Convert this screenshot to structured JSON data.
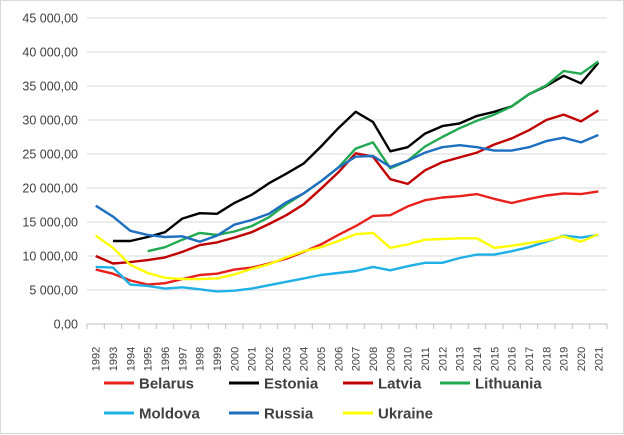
{
  "chart_data": {
    "type": "line",
    "title": "",
    "xlabel": "",
    "ylabel": "",
    "ylim": [
      0,
      45000
    ],
    "y_ticks": [
      0,
      5000,
      10000,
      15000,
      20000,
      25000,
      30000,
      35000,
      40000,
      45000
    ],
    "y_tick_labels": [
      "0,00",
      "5 000,00",
      "10 000,00",
      "15 000,00",
      "20 000,00",
      "25 000,00",
      "30 000,00",
      "35 000,00",
      "40 000,00",
      "45 000,00"
    ],
    "grid": "horizontal",
    "legend_position": "bottom",
    "x": [
      "1992",
      "1993",
      "1994",
      "1995",
      "1996",
      "1997",
      "1998",
      "1999",
      "2000",
      "2001",
      "2002",
      "2003",
      "2004",
      "2005",
      "2006",
      "2007",
      "2008",
      "2009",
      "2010",
      "2011",
      "2012",
      "2013",
      "2014",
      "2015",
      "2016",
      "2017",
      "2018",
      "2019",
      "2020",
      "2021"
    ],
    "series": [
      {
        "name": "Belarus",
        "color": "#e8201c",
        "values": [
          8000,
          7400,
          6400,
          5800,
          6000,
          6600,
          7200,
          7400,
          8000,
          8300,
          8900,
          9600,
          10600,
          11700,
          13100,
          14400,
          15900,
          16000,
          17300,
          18200,
          18600,
          18800,
          19100,
          18400,
          17800,
          18400,
          18900,
          19200,
          19100,
          19500
        ]
      },
      {
        "name": "Estonia",
        "color": "#000000",
        "values": [
          null,
          12200,
          12200,
          12800,
          13500,
          15500,
          16300,
          16200,
          17800,
          19000,
          20700,
          22100,
          23600,
          26100,
          28800,
          31200,
          29700,
          25400,
          26000,
          28000,
          29100,
          29500,
          30600,
          31200,
          32000,
          33800,
          35000,
          36500,
          35400,
          38400
        ]
      },
      {
        "name": "Latvia",
        "color": "#c00000",
        "values": [
          10000,
          8900,
          9100,
          9400,
          9800,
          10600,
          11600,
          12000,
          12700,
          13500,
          14700,
          16000,
          17600,
          19900,
          22300,
          25100,
          24600,
          21300,
          20600,
          22600,
          23800,
          24500,
          25200,
          26400,
          27300,
          28500,
          30000,
          30800,
          29800,
          31400
        ]
      },
      {
        "name": "Lithuania",
        "color": "#21a94f",
        "values": [
          null,
          null,
          null,
          10700,
          11300,
          12400,
          13400,
          13100,
          13600,
          14400,
          15700,
          17600,
          19200,
          21000,
          23000,
          25800,
          26700,
          22900,
          24000,
          26100,
          27500,
          28800,
          29900,
          30800,
          32000,
          33800,
          35100,
          37200,
          36800,
          38600
        ]
      },
      {
        "name": "Moldova",
        "color": "#1fb0e6",
        "values": [
          8400,
          8300,
          5800,
          5600,
          5200,
          5400,
          5100,
          4800,
          4900,
          5200,
          5700,
          6200,
          6700,
          7200,
          7500,
          7800,
          8400,
          7900,
          8500,
          9000,
          9000,
          9700,
          10200,
          10200,
          10700,
          11300,
          12100,
          13000,
          12700,
          13100
        ]
      },
      {
        "name": "Russia",
        "color": "#1f6fc0",
        "values": [
          17400,
          15800,
          13700,
          13100,
          12800,
          12900,
          12100,
          13000,
          14600,
          15300,
          16200,
          17900,
          19200,
          21000,
          23000,
          24600,
          24700,
          23100,
          24000,
          25200,
          26000,
          26300,
          26000,
          25500,
          25500,
          26000,
          26900,
          27400,
          26700,
          27800
        ]
      },
      {
        "name": "Ukraine",
        "color": "#ffff00",
        "values": [
          13000,
          11200,
          8700,
          7500,
          6800,
          6600,
          6600,
          6700,
          7300,
          8100,
          8800,
          9800,
          10700,
          11300,
          12200,
          13200,
          13400,
          11200,
          11700,
          12400,
          12500,
          12600,
          12600,
          11200,
          11500,
          11900,
          12300,
          12900,
          12100,
          13200
        ]
      }
    ]
  }
}
